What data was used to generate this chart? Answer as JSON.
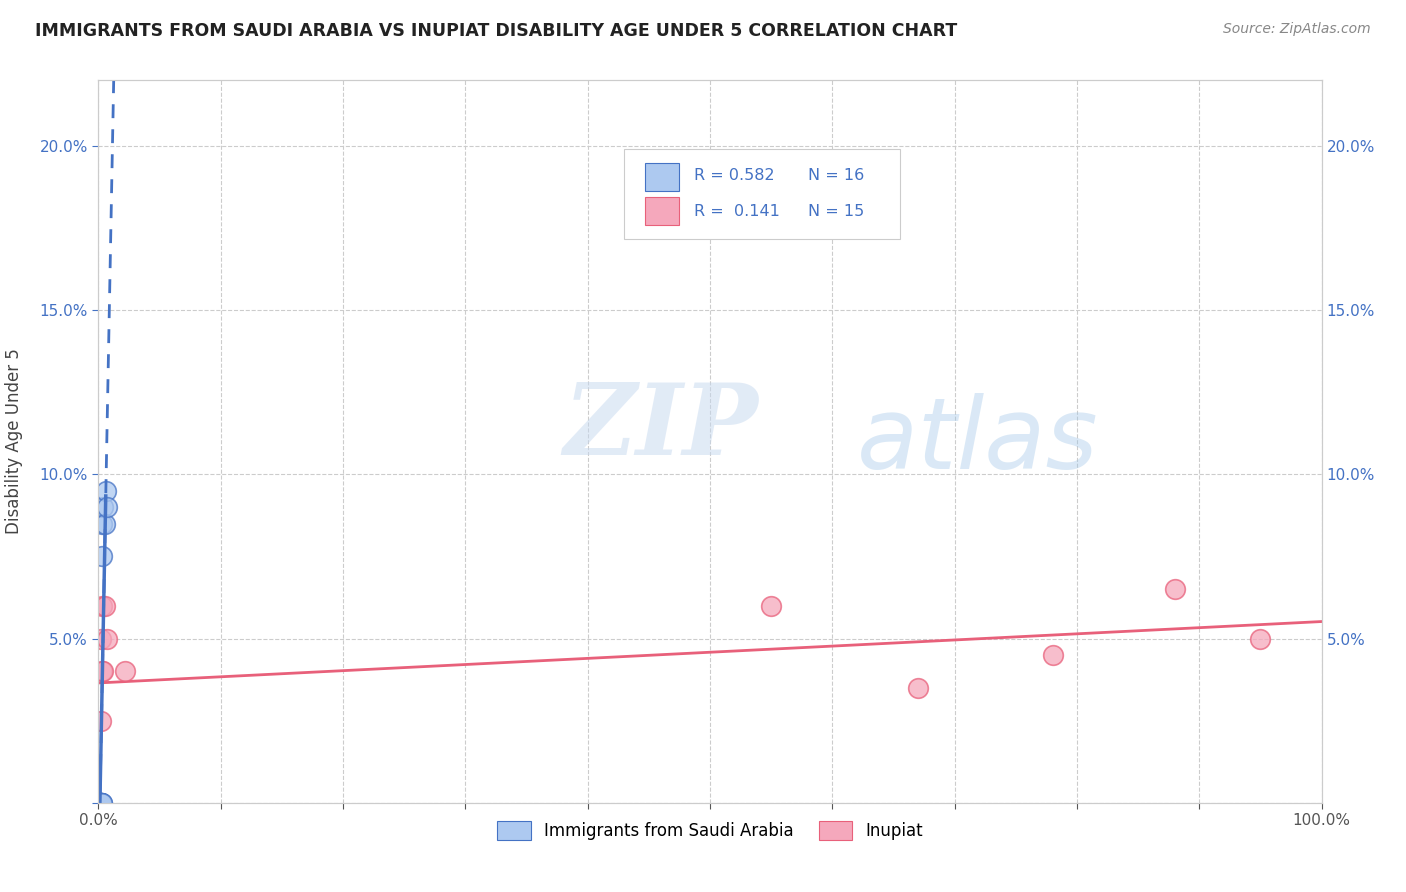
{
  "title": "IMMIGRANTS FROM SAUDI ARABIA VS INUPIAT DISABILITY AGE UNDER 5 CORRELATION CHART",
  "source": "Source: ZipAtlas.com",
  "ylabel": "Disability Age Under 5",
  "xlim": [
    0,
    1.0
  ],
  "ylim": [
    0,
    0.22
  ],
  "r_saudi": 0.582,
  "n_saudi": 16,
  "r_inupiat": 0.141,
  "n_inupiat": 15,
  "watermark_zip": "ZIP",
  "watermark_atlas": "atlas",
  "saudi_fill_color": "#adc9f0",
  "saudi_edge_color": "#4472c4",
  "inupiat_fill_color": "#f5a8bc",
  "inupiat_edge_color": "#e8607a",
  "saudi_line_color": "#4472c4",
  "inupiat_line_color": "#e8607a",
  "saudi_scatter_x": [
    0.001,
    0.001,
    0.001,
    0.001,
    0.002,
    0.002,
    0.002,
    0.002,
    0.003,
    0.003,
    0.003,
    0.003,
    0.004,
    0.005,
    0.006,
    0.007
  ],
  "saudi_scatter_y": [
    0.0,
    0.0,
    0.0,
    0.0,
    0.0,
    0.0,
    0.0,
    0.0,
    0.0,
    0.0,
    0.075,
    0.085,
    0.09,
    0.085,
    0.095,
    0.09
  ],
  "inupiat_scatter_x": [
    0.001,
    0.001,
    0.002,
    0.002,
    0.003,
    0.003,
    0.004,
    0.005,
    0.007,
    0.022,
    0.55,
    0.67,
    0.78,
    0.88,
    0.95
  ],
  "inupiat_scatter_y": [
    0.0,
    0.0,
    0.05,
    0.025,
    0.06,
    0.04,
    0.04,
    0.06,
    0.05,
    0.04,
    0.06,
    0.035,
    0.045,
    0.065,
    0.05
  ],
  "background_color": "#ffffff",
  "grid_color": "#cccccc",
  "tick_color_y": "#4472c4",
  "tick_color_x": "#555555"
}
